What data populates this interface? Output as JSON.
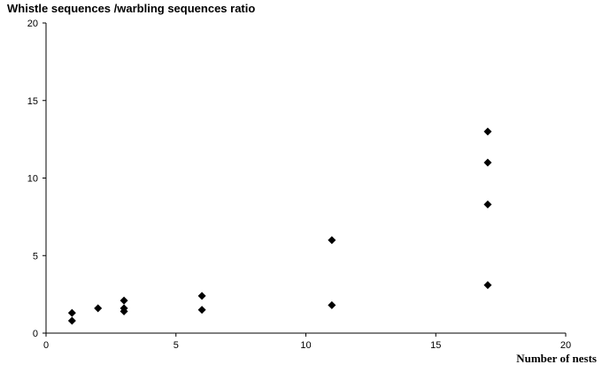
{
  "chart_data": {
    "type": "scatter",
    "title": "",
    "xlabel": "Number of nests",
    "ylabel": "Whistle sequences /warbling sequences ratio",
    "xlim": [
      0,
      20
    ],
    "ylim": [
      0,
      20
    ],
    "xticks": [
      "0",
      "5",
      "10",
      "15",
      "20"
    ],
    "yticks": [
      "0",
      "5",
      "10",
      "15",
      "20"
    ],
    "grid": false,
    "legend": "none",
    "marker": "diamond",
    "marker_color": "#000000",
    "series": [
      {
        "points": [
          {
            "x": 1,
            "y": 1.3
          },
          {
            "x": 1,
            "y": 0.8
          },
          {
            "x": 2,
            "y": 1.6
          },
          {
            "x": 3,
            "y": 2.1
          },
          {
            "x": 3,
            "y": 1.6
          },
          {
            "x": 3,
            "y": 1.4
          },
          {
            "x": 6,
            "y": 2.4
          },
          {
            "x": 6,
            "y": 1.5
          },
          {
            "x": 11,
            "y": 6.0
          },
          {
            "x": 11,
            "y": 1.8
          },
          {
            "x": 17,
            "y": 13.0
          },
          {
            "x": 17,
            "y": 11.0
          },
          {
            "x": 17,
            "y": 8.3
          },
          {
            "x": 17,
            "y": 3.1
          }
        ]
      }
    ]
  }
}
